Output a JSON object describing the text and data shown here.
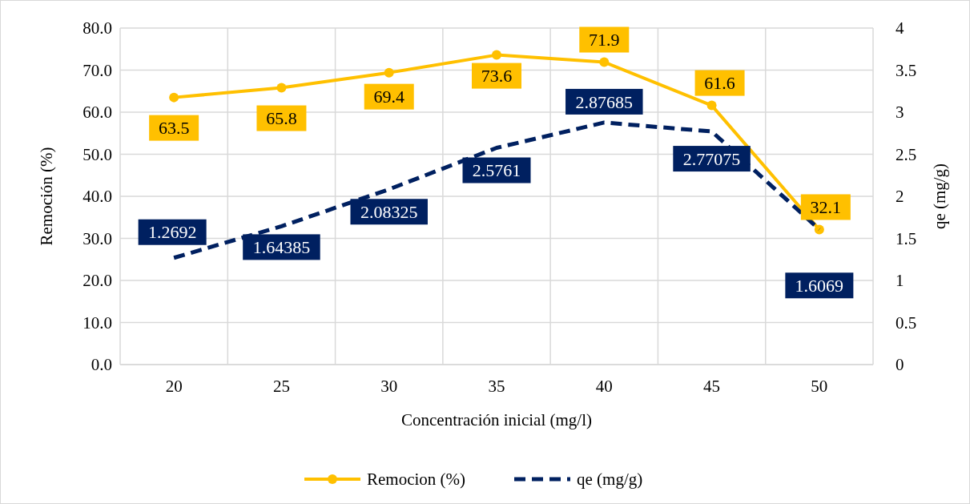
{
  "chart_data": {
    "type": "line",
    "xlabel": "Concentración inicial (mg/l)",
    "ylabel": "Remoción (%)",
    "y2label": "qe (mg/g)",
    "categories": [
      "20",
      "25",
      "30",
      "35",
      "40",
      "45",
      "50"
    ],
    "series": [
      {
        "name": "Remocion (%)",
        "color": "#ffc000",
        "marker": "circle",
        "line_style": "solid",
        "values": [
          63.5,
          65.8,
          69.4,
          73.6,
          71.9,
          61.6,
          32.1
        ]
      },
      {
        "name": "qe (mg/g)",
        "color": "#002060",
        "marker": "none",
        "line_style": "dashed",
        "axis": "y2",
        "values": [
          1.2692,
          1.64385,
          2.08325,
          2.5761,
          2.87685,
          2.77075,
          1.6069
        ]
      }
    ],
    "ylim": [
      0,
      80
    ],
    "yticks": [
      {
        "value": 0,
        "label": "0.0"
      },
      {
        "value": 10,
        "label": "10.0"
      },
      {
        "value": 20,
        "label": "20.0"
      },
      {
        "value": 30,
        "label": "30.0"
      },
      {
        "value": 40,
        "label": "40.0"
      },
      {
        "value": 50,
        "label": "50.0"
      },
      {
        "value": 60,
        "label": "60.0"
      },
      {
        "value": 70,
        "label": "70.0"
      },
      {
        "value": 80,
        "label": "80.0"
      }
    ],
    "y2lim": [
      0,
      4
    ],
    "y2ticks": [
      0,
      0.5,
      1,
      1.5,
      2,
      2.5,
      3,
      3.5,
      4
    ],
    "grid": true,
    "legend": "bottom",
    "data_labels": true
  }
}
